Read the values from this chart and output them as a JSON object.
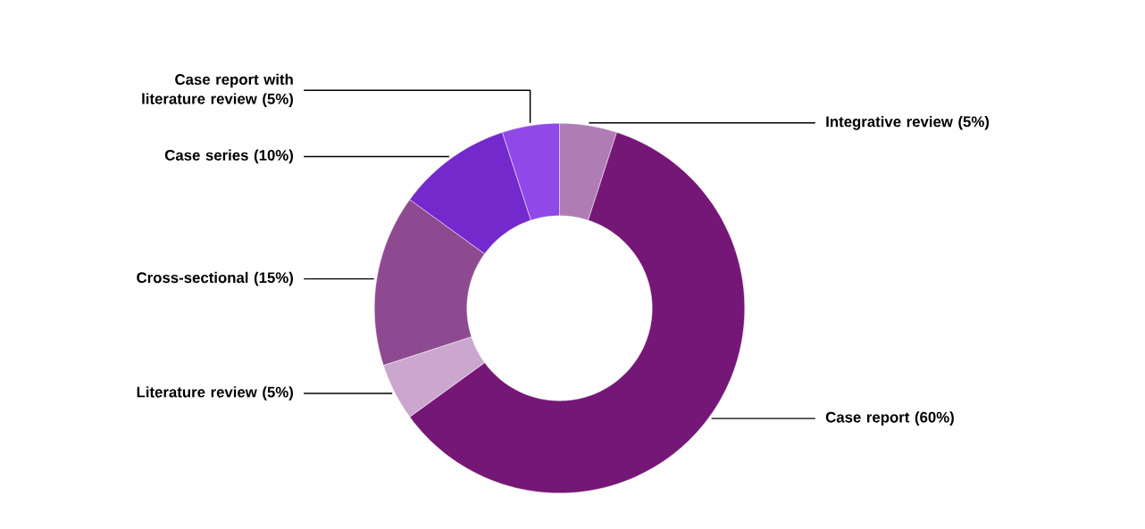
{
  "chart_data": {
    "type": "donut",
    "categories": [
      "Integrative review",
      "Case report",
      "Literature review",
      "Cross-sectional",
      "Case series",
      "Case report with literature review"
    ],
    "values": [
      5,
      60,
      5,
      15,
      10,
      5
    ],
    "value_labels": [
      "(5%)",
      "(60%)",
      "(5%)",
      "(15%)",
      "(10%)",
      "(5%)"
    ],
    "colors": [
      "#b07cb5",
      "#751776",
      "#cba6cf",
      "#8e4a91",
      "#7329cc",
      "#9148e8"
    ]
  }
}
